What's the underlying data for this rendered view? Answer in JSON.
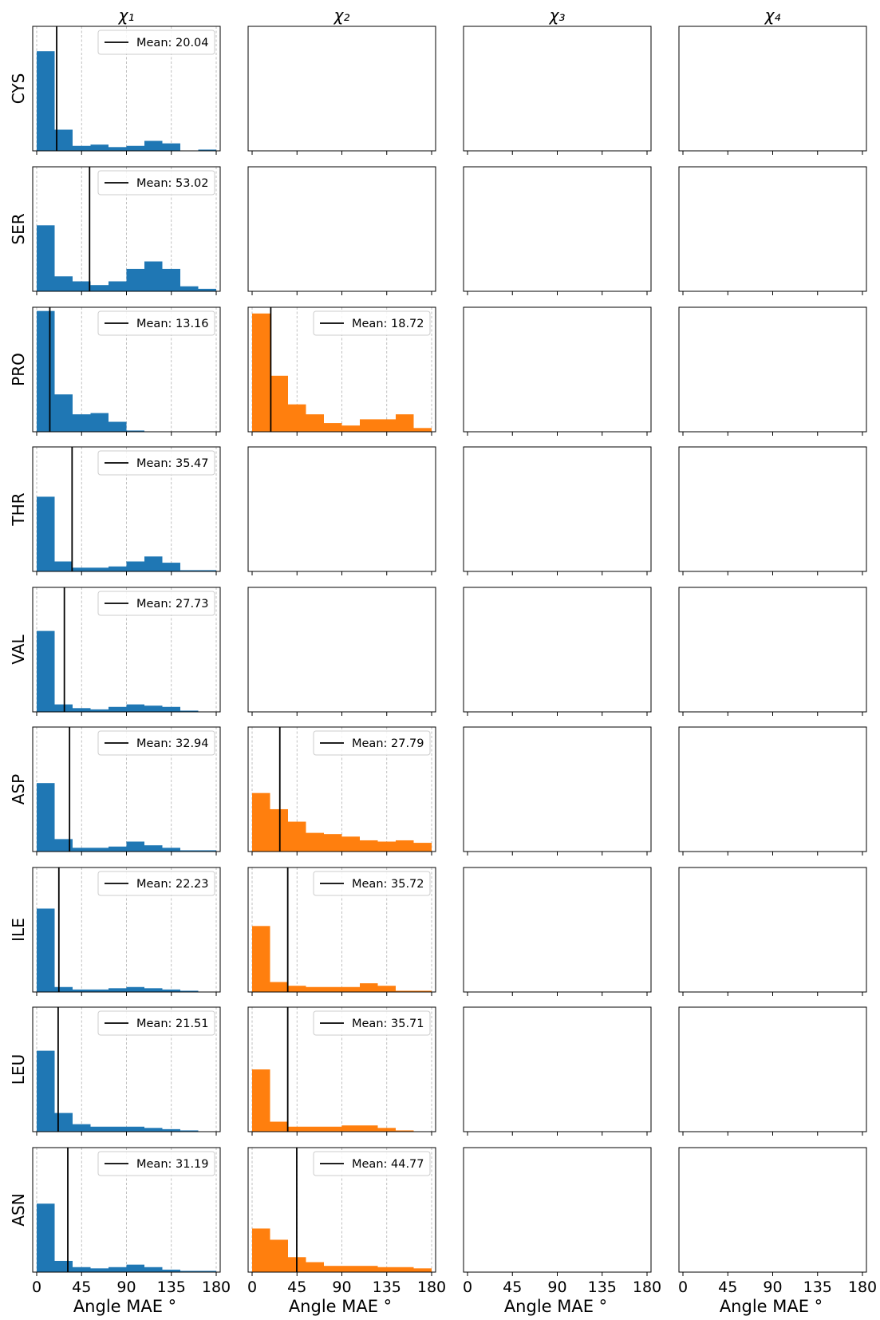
{
  "chart_data": {
    "type": "bar",
    "description_kind": "histogram grid",
    "column_titles": [
      "χ₁",
      "χ₂",
      "χ₃",
      "χ₄"
    ],
    "row_labels": [
      "CYS",
      "SER",
      "PRO",
      "THR",
      "VAL",
      "ASP",
      "ILE",
      "LEU",
      "ASN"
    ],
    "xlabel": "Angle MAE °",
    "xlim": [
      0,
      180
    ],
    "xticks": [
      0,
      45,
      90,
      135,
      180
    ],
    "grid_axis": "x",
    "legend_placement": "upper right",
    "colors": {
      "chi1": "#1f77b4",
      "chi2": "#ff7f0e",
      "mean_line": "#000000"
    },
    "panels": [
      {
        "row": "CYS",
        "col": 1,
        "bin_range": [
          0,
          180
        ],
        "densities": [
          0.8,
          0.17,
          0.04,
          0.05,
          0.03,
          0.04,
          0.08,
          0.06,
          0.0,
          0.01
        ],
        "mean": 20.04,
        "mean_label": "Mean: 20.04"
      },
      {
        "row": "SER",
        "col": 1,
        "bin_range": [
          0,
          180
        ],
        "densities": [
          0.53,
          0.12,
          0.08,
          0.05,
          0.08,
          0.18,
          0.24,
          0.18,
          0.04,
          0.02
        ],
        "mean": 53.02,
        "mean_label": "Mean: 53.02"
      },
      {
        "row": "PRO",
        "col": 1,
        "bin_range": [
          0,
          180
        ],
        "densities": [
          0.97,
          0.3,
          0.14,
          0.15,
          0.08,
          0.01,
          0.0,
          0.0,
          0.0,
          0.0
        ],
        "mean": 13.16,
        "mean_label": "Mean: 13.16"
      },
      {
        "row": "PRO",
        "col": 2,
        "bin_range": [
          0,
          180
        ],
        "densities": [
          0.95,
          0.45,
          0.22,
          0.14,
          0.07,
          0.05,
          0.1,
          0.1,
          0.14,
          0.03
        ],
        "mean": 18.72,
        "mean_label": "Mean: 18.72"
      },
      {
        "row": "THR",
        "col": 1,
        "bin_range": [
          0,
          180
        ],
        "densities": [
          0.6,
          0.08,
          0.03,
          0.03,
          0.04,
          0.08,
          0.12,
          0.07,
          0.01,
          0.01
        ],
        "mean": 35.47,
        "mean_label": "Mean: 35.47"
      },
      {
        "row": "VAL",
        "col": 1,
        "bin_range": [
          0,
          180
        ],
        "densities": [
          0.65,
          0.06,
          0.03,
          0.02,
          0.04,
          0.06,
          0.05,
          0.04,
          0.01,
          0.0
        ],
        "mean": 27.73,
        "mean_label": "Mean: 27.73"
      },
      {
        "row": "ASP",
        "col": 1,
        "bin_range": [
          0,
          180
        ],
        "densities": [
          0.55,
          0.1,
          0.03,
          0.03,
          0.04,
          0.08,
          0.05,
          0.03,
          0.01,
          0.01
        ],
        "mean": 32.94,
        "mean_label": "Mean: 32.94"
      },
      {
        "row": "ASP",
        "col": 2,
        "bin_range": [
          0,
          180
        ],
        "densities": [
          0.47,
          0.34,
          0.24,
          0.15,
          0.14,
          0.12,
          0.09,
          0.08,
          0.09,
          0.07
        ],
        "mean": 27.79,
        "mean_label": "Mean: 27.79"
      },
      {
        "row": "ILE",
        "col": 1,
        "bin_range": [
          0,
          180
        ],
        "densities": [
          0.67,
          0.04,
          0.02,
          0.02,
          0.03,
          0.04,
          0.03,
          0.02,
          0.01,
          0.0
        ],
        "mean": 22.23,
        "mean_label": "Mean: 22.23"
      },
      {
        "row": "ILE",
        "col": 2,
        "bin_range": [
          0,
          180
        ],
        "densities": [
          0.53,
          0.08,
          0.05,
          0.04,
          0.04,
          0.04,
          0.07,
          0.05,
          0.01,
          0.01
        ],
        "mean": 35.72,
        "mean_label": "Mean: 35.72"
      },
      {
        "row": "LEU",
        "col": 1,
        "bin_range": [
          0,
          180
        ],
        "densities": [
          0.65,
          0.15,
          0.06,
          0.04,
          0.04,
          0.04,
          0.03,
          0.02,
          0.01,
          0.0
        ],
        "mean": 21.51,
        "mean_label": "Mean: 21.51"
      },
      {
        "row": "LEU",
        "col": 2,
        "bin_range": [
          0,
          180
        ],
        "densities": [
          0.5,
          0.08,
          0.04,
          0.04,
          0.04,
          0.05,
          0.05,
          0.03,
          0.01,
          0.0
        ],
        "mean": 35.71,
        "mean_label": "Mean: 35.71"
      },
      {
        "row": "ASN",
        "col": 1,
        "bin_range": [
          0,
          180
        ],
        "densities": [
          0.55,
          0.09,
          0.04,
          0.03,
          0.04,
          0.06,
          0.04,
          0.02,
          0.01,
          0.01
        ],
        "mean": 31.19,
        "mean_label": "Mean: 31.19"
      },
      {
        "row": "ASN",
        "col": 2,
        "bin_range": [
          0,
          180
        ],
        "densities": [
          0.35,
          0.26,
          0.12,
          0.08,
          0.05,
          0.05,
          0.05,
          0.04,
          0.04,
          0.03
        ],
        "mean": 44.77,
        "mean_label": "Mean: 44.77"
      }
    ]
  }
}
